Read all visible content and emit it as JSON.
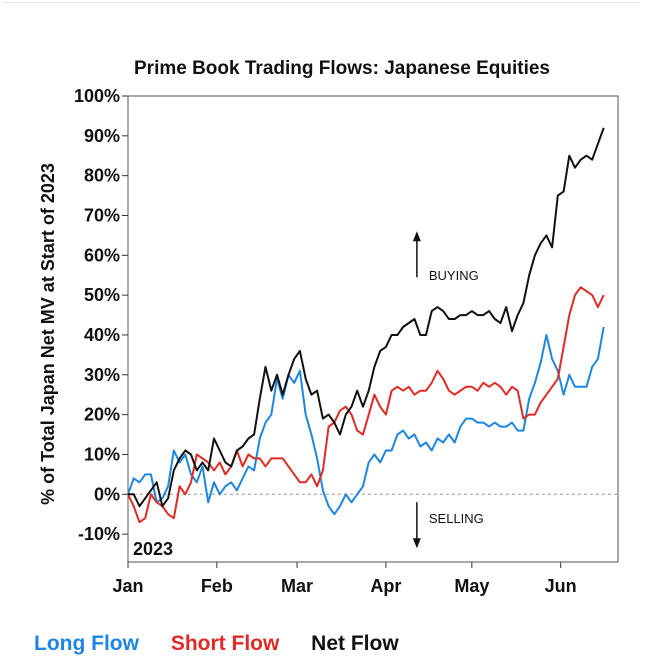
{
  "chart_data": {
    "type": "line",
    "title": "Prime Book Trading Flows: Japanese Equities",
    "ylabel": "% of Total Japan Net MV at Start of 2023",
    "xlabel": "",
    "year_label": "2023",
    "ylim": [
      -17,
      100
    ],
    "yticks": [
      "100%",
      "90%",
      "80%",
      "70%",
      "60%",
      "50%",
      "40%",
      "30%",
      "20%",
      "10%",
      "0%",
      "-10%"
    ],
    "ytick_values": [
      100,
      90,
      80,
      70,
      60,
      50,
      40,
      30,
      20,
      10,
      0,
      -10
    ],
    "xlim": [
      1,
      172
    ],
    "xticks": [
      "Jan",
      "Feb",
      "Mar",
      "Apr",
      "May",
      "Jun"
    ],
    "xtick_values": [
      1,
      32,
      60,
      91,
      121,
      152
    ],
    "zero_line": "dashed",
    "annotations": [
      {
        "text": "BUYING",
        "x": 106,
        "y": 55,
        "arrow": "up"
      },
      {
        "text": "SELLING",
        "x": 106,
        "y": -6,
        "arrow": "down"
      }
    ],
    "series": [
      {
        "name": "Long Flow",
        "color": "#1f86e0",
        "points": [
          [
            1,
            0
          ],
          [
            3,
            4
          ],
          [
            5,
            3
          ],
          [
            7,
            5
          ],
          [
            9,
            5
          ],
          [
            11,
            -2
          ],
          [
            13,
            -1
          ],
          [
            15,
            2
          ],
          [
            17,
            11
          ],
          [
            19,
            8
          ],
          [
            21,
            10
          ],
          [
            23,
            5
          ],
          [
            25,
            3
          ],
          [
            27,
            7
          ],
          [
            29,
            -2
          ],
          [
            31,
            3
          ],
          [
            33,
            0
          ],
          [
            35,
            2
          ],
          [
            37,
            3
          ],
          [
            39,
            1
          ],
          [
            41,
            4
          ],
          [
            43,
            7
          ],
          [
            45,
            6
          ],
          [
            47,
            14
          ],
          [
            49,
            18
          ],
          [
            51,
            20
          ],
          [
            53,
            29
          ],
          [
            55,
            24
          ],
          [
            57,
            30
          ],
          [
            59,
            28
          ],
          [
            61,
            31
          ],
          [
            63,
            20
          ],
          [
            65,
            15
          ],
          [
            67,
            9
          ],
          [
            69,
            1
          ],
          [
            71,
            -3
          ],
          [
            73,
            -5
          ],
          [
            75,
            -3
          ],
          [
            77,
            0
          ],
          [
            79,
            -2
          ],
          [
            81,
            0
          ],
          [
            83,
            2
          ],
          [
            85,
            8
          ],
          [
            87,
            10
          ],
          [
            89,
            8
          ],
          [
            91,
            11
          ],
          [
            93,
            11
          ],
          [
            95,
            15
          ],
          [
            97,
            16
          ],
          [
            99,
            14
          ],
          [
            101,
            15
          ],
          [
            103,
            12
          ],
          [
            105,
            13
          ],
          [
            107,
            11
          ],
          [
            109,
            14
          ],
          [
            111,
            13
          ],
          [
            113,
            15
          ],
          [
            115,
            13
          ],
          [
            117,
            17
          ],
          [
            119,
            19
          ],
          [
            121,
            19
          ],
          [
            123,
            18
          ],
          [
            125,
            18
          ],
          [
            127,
            17
          ],
          [
            129,
            18
          ],
          [
            131,
            17
          ],
          [
            133,
            17
          ],
          [
            135,
            18
          ],
          [
            137,
            16
          ],
          [
            139,
            16
          ],
          [
            141,
            24
          ],
          [
            143,
            28
          ],
          [
            145,
            33
          ],
          [
            147,
            40
          ],
          [
            149,
            34
          ],
          [
            151,
            31
          ],
          [
            153,
            25
          ],
          [
            155,
            30
          ],
          [
            157,
            27
          ],
          [
            159,
            27
          ],
          [
            161,
            27
          ],
          [
            163,
            32
          ],
          [
            165,
            34
          ],
          [
            167,
            42
          ]
        ]
      },
      {
        "name": "Short Flow",
        "color": "#e02a26",
        "points": [
          [
            1,
            0
          ],
          [
            3,
            -3
          ],
          [
            5,
            -7
          ],
          [
            7,
            -6
          ],
          [
            9,
            0
          ],
          [
            11,
            -2
          ],
          [
            13,
            -3
          ],
          [
            15,
            -5
          ],
          [
            17,
            -6
          ],
          [
            19,
            2
          ],
          [
            21,
            0
          ],
          [
            23,
            3
          ],
          [
            25,
            10
          ],
          [
            27,
            9
          ],
          [
            29,
            8
          ],
          [
            31,
            6
          ],
          [
            33,
            8
          ],
          [
            35,
            5
          ],
          [
            37,
            7
          ],
          [
            39,
            11
          ],
          [
            41,
            7
          ],
          [
            43,
            10
          ],
          [
            45,
            9
          ],
          [
            47,
            9
          ],
          [
            49,
            7
          ],
          [
            51,
            9
          ],
          [
            53,
            9
          ],
          [
            55,
            9
          ],
          [
            57,
            7
          ],
          [
            59,
            5
          ],
          [
            61,
            3
          ],
          [
            63,
            3
          ],
          [
            65,
            5
          ],
          [
            67,
            2
          ],
          [
            69,
            6
          ],
          [
            71,
            17
          ],
          [
            73,
            18
          ],
          [
            75,
            21
          ],
          [
            77,
            22
          ],
          [
            79,
            20
          ],
          [
            81,
            16
          ],
          [
            83,
            15
          ],
          [
            85,
            20
          ],
          [
            87,
            25
          ],
          [
            89,
            22
          ],
          [
            91,
            20
          ],
          [
            93,
            26
          ],
          [
            95,
            27
          ],
          [
            97,
            26
          ],
          [
            99,
            27
          ],
          [
            101,
            25
          ],
          [
            103,
            26
          ],
          [
            105,
            26
          ],
          [
            107,
            28
          ],
          [
            109,
            31
          ],
          [
            111,
            29
          ],
          [
            113,
            26
          ],
          [
            115,
            25
          ],
          [
            117,
            26
          ],
          [
            119,
            27
          ],
          [
            121,
            27
          ],
          [
            123,
            26
          ],
          [
            125,
            28
          ],
          [
            127,
            27
          ],
          [
            129,
            28
          ],
          [
            131,
            27
          ],
          [
            133,
            25
          ],
          [
            135,
            27
          ],
          [
            137,
            26
          ],
          [
            139,
            19
          ],
          [
            141,
            20
          ],
          [
            143,
            20
          ],
          [
            145,
            23
          ],
          [
            147,
            25
          ],
          [
            149,
            27
          ],
          [
            151,
            29
          ],
          [
            153,
            37
          ],
          [
            155,
            45
          ],
          [
            157,
            50
          ],
          [
            159,
            52
          ],
          [
            161,
            51
          ],
          [
            163,
            50
          ],
          [
            165,
            47
          ],
          [
            167,
            50
          ]
        ]
      },
      {
        "name": "Net Flow",
        "color": "#111111",
        "points": [
          [
            1,
            0
          ],
          [
            3,
            0
          ],
          [
            5,
            -3
          ],
          [
            7,
            -1
          ],
          [
            9,
            1
          ],
          [
            11,
            3
          ],
          [
            13,
            -3
          ],
          [
            15,
            -1
          ],
          [
            17,
            6
          ],
          [
            19,
            9
          ],
          [
            21,
            11
          ],
          [
            23,
            10
          ],
          [
            25,
            6
          ],
          [
            27,
            8
          ],
          [
            29,
            6
          ],
          [
            31,
            14
          ],
          [
            33,
            11
          ],
          [
            35,
            8
          ],
          [
            37,
            7
          ],
          [
            39,
            11
          ],
          [
            41,
            12
          ],
          [
            43,
            14
          ],
          [
            45,
            15
          ],
          [
            47,
            24
          ],
          [
            49,
            32
          ],
          [
            51,
            26
          ],
          [
            53,
            30
          ],
          [
            55,
            25
          ],
          [
            57,
            30
          ],
          [
            59,
            34
          ],
          [
            61,
            36
          ],
          [
            63,
            29
          ],
          [
            65,
            25
          ],
          [
            67,
            26
          ],
          [
            69,
            19
          ],
          [
            71,
            20
          ],
          [
            73,
            18
          ],
          [
            75,
            15
          ],
          [
            77,
            20
          ],
          [
            79,
            22
          ],
          [
            81,
            26
          ],
          [
            83,
            22
          ],
          [
            85,
            26
          ],
          [
            87,
            32
          ],
          [
            89,
            36
          ],
          [
            91,
            37
          ],
          [
            93,
            40
          ],
          [
            95,
            40
          ],
          [
            97,
            42
          ],
          [
            99,
            43
          ],
          [
            101,
            44
          ],
          [
            103,
            40
          ],
          [
            105,
            40
          ],
          [
            107,
            46
          ],
          [
            109,
            47
          ],
          [
            111,
            46
          ],
          [
            113,
            44
          ],
          [
            115,
            44
          ],
          [
            117,
            45
          ],
          [
            119,
            45
          ],
          [
            121,
            46
          ],
          [
            123,
            45
          ],
          [
            125,
            45
          ],
          [
            127,
            46
          ],
          [
            129,
            44
          ],
          [
            131,
            43
          ],
          [
            133,
            47
          ],
          [
            135,
            41
          ],
          [
            137,
            45
          ],
          [
            139,
            48
          ],
          [
            141,
            55
          ],
          [
            143,
            60
          ],
          [
            145,
            63
          ],
          [
            147,
            65
          ],
          [
            149,
            62
          ],
          [
            151,
            75
          ],
          [
            153,
            76
          ],
          [
            155,
            85
          ],
          [
            157,
            82
          ],
          [
            159,
            84
          ],
          [
            161,
            85
          ],
          [
            163,
            84
          ],
          [
            165,
            88
          ],
          [
            167,
            92
          ]
        ]
      }
    ]
  }
}
